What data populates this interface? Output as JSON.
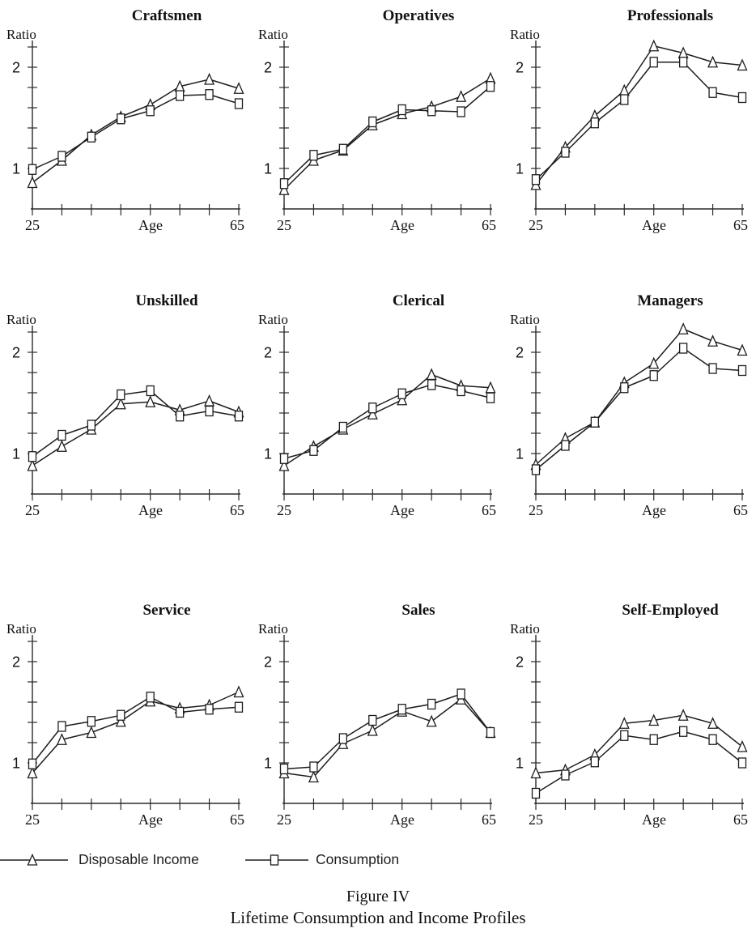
{
  "chart_data": {
    "type": "line",
    "layout": "3x3-grid",
    "x": [
      25,
      31,
      36,
      42,
      48,
      53,
      59,
      65
    ],
    "xlabel": "Age",
    "x_tick_labels": [
      "25",
      "65"
    ],
    "x_num_ticks": 8,
    "ylabel": "Ratio",
    "y_tick_labels": [
      "1",
      "2"
    ],
    "y_labeled_ticks": [
      1,
      2
    ],
    "y_minor_tick_step": 0.2,
    "ylim": [
      0.6,
      2.3
    ],
    "grid": false,
    "legend_position": "bottom-left",
    "series_names": [
      "Disposable Income",
      "Consumption"
    ],
    "panels": [
      {
        "title": "Craftsmen",
        "series": [
          {
            "name": "Disposable Income",
            "values": [
              0.86,
              1.08,
              1.33,
              1.51,
              1.63,
              1.81,
              1.88,
              1.79
            ]
          },
          {
            "name": "Consumption",
            "values": [
              0.99,
              1.12,
              1.31,
              1.49,
              1.57,
              1.72,
              1.73,
              1.64
            ]
          }
        ]
      },
      {
        "title": "Operatives",
        "series": [
          {
            "name": "Disposable Income",
            "values": [
              0.79,
              1.08,
              1.18,
              1.43,
              1.54,
              1.61,
              1.71,
              1.89
            ]
          },
          {
            "name": "Consumption",
            "values": [
              0.85,
              1.13,
              1.19,
              1.46,
              1.58,
              1.57,
              1.56,
              1.81
            ]
          }
        ]
      },
      {
        "title": "Professionals",
        "series": [
          {
            "name": "Disposable Income",
            "values": [
              0.84,
              1.21,
              1.52,
              1.77,
              2.21,
              2.14,
              2.05,
              2.02
            ]
          },
          {
            "name": "Consumption",
            "values": [
              0.89,
              1.16,
              1.45,
              1.68,
              2.05,
              2.05,
              1.75,
              1.7
            ]
          }
        ]
      },
      {
        "title": "Unskilled",
        "series": [
          {
            "name": "Disposable Income",
            "values": [
              0.88,
              1.07,
              1.24,
              1.49,
              1.51,
              1.43,
              1.52,
              1.41
            ]
          },
          {
            "name": "Consumption",
            "values": [
              0.97,
              1.18,
              1.28,
              1.58,
              1.62,
              1.37,
              1.42,
              1.37
            ]
          }
        ]
      },
      {
        "title": "Clerical",
        "series": [
          {
            "name": "Disposable Income",
            "values": [
              0.88,
              1.07,
              1.24,
              1.39,
              1.53,
              1.78,
              1.67,
              1.65
            ]
          },
          {
            "name": "Consumption",
            "values": [
              0.95,
              1.03,
              1.26,
              1.45,
              1.59,
              1.68,
              1.62,
              1.55
            ]
          }
        ]
      },
      {
        "title": "Managers",
        "series": [
          {
            "name": "Disposable Income",
            "values": [
              0.89,
              1.15,
              1.31,
              1.7,
              1.89,
              2.23,
              2.11,
              2.02
            ]
          },
          {
            "name": "Consumption",
            "values": [
              0.84,
              1.08,
              1.31,
              1.65,
              1.77,
              2.04,
              1.84,
              1.82
            ]
          }
        ]
      },
      {
        "title": "Service",
        "series": [
          {
            "name": "Disposable Income",
            "values": [
              0.9,
              1.23,
              1.3,
              1.41,
              1.61,
              1.54,
              1.57,
              1.7
            ]
          },
          {
            "name": "Consumption",
            "values": [
              0.99,
              1.36,
              1.41,
              1.47,
              1.65,
              1.5,
              1.53,
              1.55
            ]
          }
        ]
      },
      {
        "title": "Sales",
        "series": [
          {
            "name": "Disposable Income",
            "values": [
              0.9,
              0.86,
              1.19,
              1.32,
              1.51,
              1.41,
              1.63,
              1.3
            ]
          },
          {
            "name": "Consumption",
            "values": [
              0.94,
              0.96,
              1.24,
              1.42,
              1.53,
              1.58,
              1.68,
              1.3
            ]
          }
        ]
      },
      {
        "title": "Self-Employed",
        "series": [
          {
            "name": "Disposable Income",
            "values": [
              0.9,
              0.93,
              1.08,
              1.39,
              1.42,
              1.47,
              1.39,
              1.16
            ]
          },
          {
            "name": "Consumption",
            "values": [
              0.7,
              0.88,
              1.01,
              1.27,
              1.23,
              1.31,
              1.23,
              1.0
            ]
          }
        ]
      }
    ]
  },
  "legend": {
    "items": [
      {
        "marker": "triangle-icon",
        "label": "Disposable Income"
      },
      {
        "marker": "square-icon",
        "label": "Consumption"
      }
    ]
  },
  "caption": {
    "line1": "Figure IV",
    "line2": "Lifetime Consumption and Income Profiles"
  },
  "colors": {
    "ink": "#1d1d1d",
    "background": "#ffffff",
    "marker_fill": "#ffffff"
  }
}
